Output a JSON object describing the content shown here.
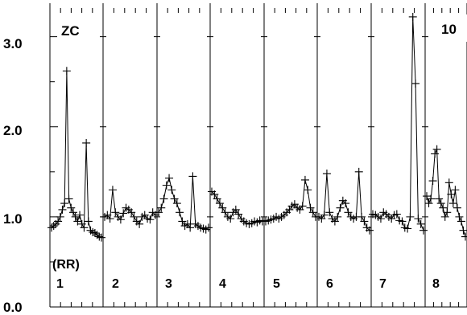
{
  "chart_data": {
    "type": "line",
    "title": "",
    "corner_labels": {
      "left": "ZC",
      "right": "10"
    },
    "group_label": "(RR)",
    "panels": [
      "1",
      "2",
      "3",
      "4",
      "5",
      "6",
      "7",
      "8"
    ],
    "ylim": [
      0.0,
      3.3
    ],
    "y_ticks": [
      "0.0",
      "1.0",
      "2.0",
      "3.0"
    ],
    "y_tick_values": [
      0.0,
      1.0,
      2.0,
      3.0
    ],
    "grid": "vertical panel separators",
    "series": [
      {
        "marker": "plus",
        "color": "#000000",
        "segments": [
          {
            "panel": "1",
            "y": [
              0.88,
              0.9,
              0.92,
              0.95,
              1.0,
              1.08,
              1.15,
              2.62,
              1.2,
              1.1,
              1.05,
              1.0,
              0.95,
              1.02,
              0.92,
              0.88,
              1.82,
              0.95,
              0.85,
              0.83,
              0.82,
              0.8,
              0.78,
              0.77
            ]
          },
          {
            "panel": "2",
            "y": [
              1.0,
              1.02,
              0.98,
              1.3,
              1.05,
              1.0,
              0.97,
              1.04,
              1.1,
              1.08,
              1.05,
              1.0,
              0.95,
              0.92,
              1.0,
              1.02,
              0.98,
              0.97,
              1.05,
              1.02
            ]
          },
          {
            "panel": "3",
            "y": [
              1.05,
              1.1,
              1.2,
              1.35,
              1.43,
              1.3,
              1.2,
              1.15,
              1.05,
              0.95,
              0.9,
              0.92,
              0.88,
              1.45,
              0.92,
              0.9,
              0.88,
              0.87,
              0.86,
              0.88
            ]
          },
          {
            "panel": "4",
            "y": [
              1.28,
              1.25,
              1.2,
              1.15,
              1.1,
              1.05,
              1.0,
              0.98,
              1.05,
              1.08,
              1.03,
              0.98,
              0.95,
              0.93,
              0.92,
              0.93,
              0.95,
              0.94,
              0.96,
              0.95
            ]
          },
          {
            "panel": "5",
            "y": [
              0.95,
              0.96,
              0.97,
              0.98,
              1.0,
              0.98,
              1.0,
              1.02,
              1.05,
              1.08,
              1.12,
              1.14,
              1.1,
              1.08,
              1.12,
              1.41,
              1.3,
              1.1,
              1.05,
              1.0
            ]
          },
          {
            "panel": "6",
            "y": [
              1.0,
              0.98,
              1.02,
              1.48,
              1.05,
              0.98,
              0.95,
              1.0,
              1.1,
              1.18,
              1.15,
              1.05,
              1.0,
              0.98,
              1.0,
              1.5,
              1.0,
              0.95,
              0.88,
              0.85
            ]
          },
          {
            "panel": "7",
            "y": [
              1.03,
              1.02,
              1.0,
              0.98,
              1.05,
              1.03,
              1.0,
              0.98,
              1.02,
              1.03,
              0.96,
              0.95,
              0.88,
              0.87,
              1.0,
              3.22,
              2.48,
              0.98,
              0.92,
              0.85
            ]
          },
          {
            "panel": "8",
            "y": [
              1.23,
              1.15,
              1.2,
              1.4,
              1.7,
              1.75,
              1.2,
              1.15,
              1.1,
              1.0,
              1.05,
              1.38,
              1.25,
              1.15,
              1.3,
              1.1,
              1.0,
              0.95,
              0.85,
              0.78
            ]
          }
        ]
      }
    ]
  }
}
